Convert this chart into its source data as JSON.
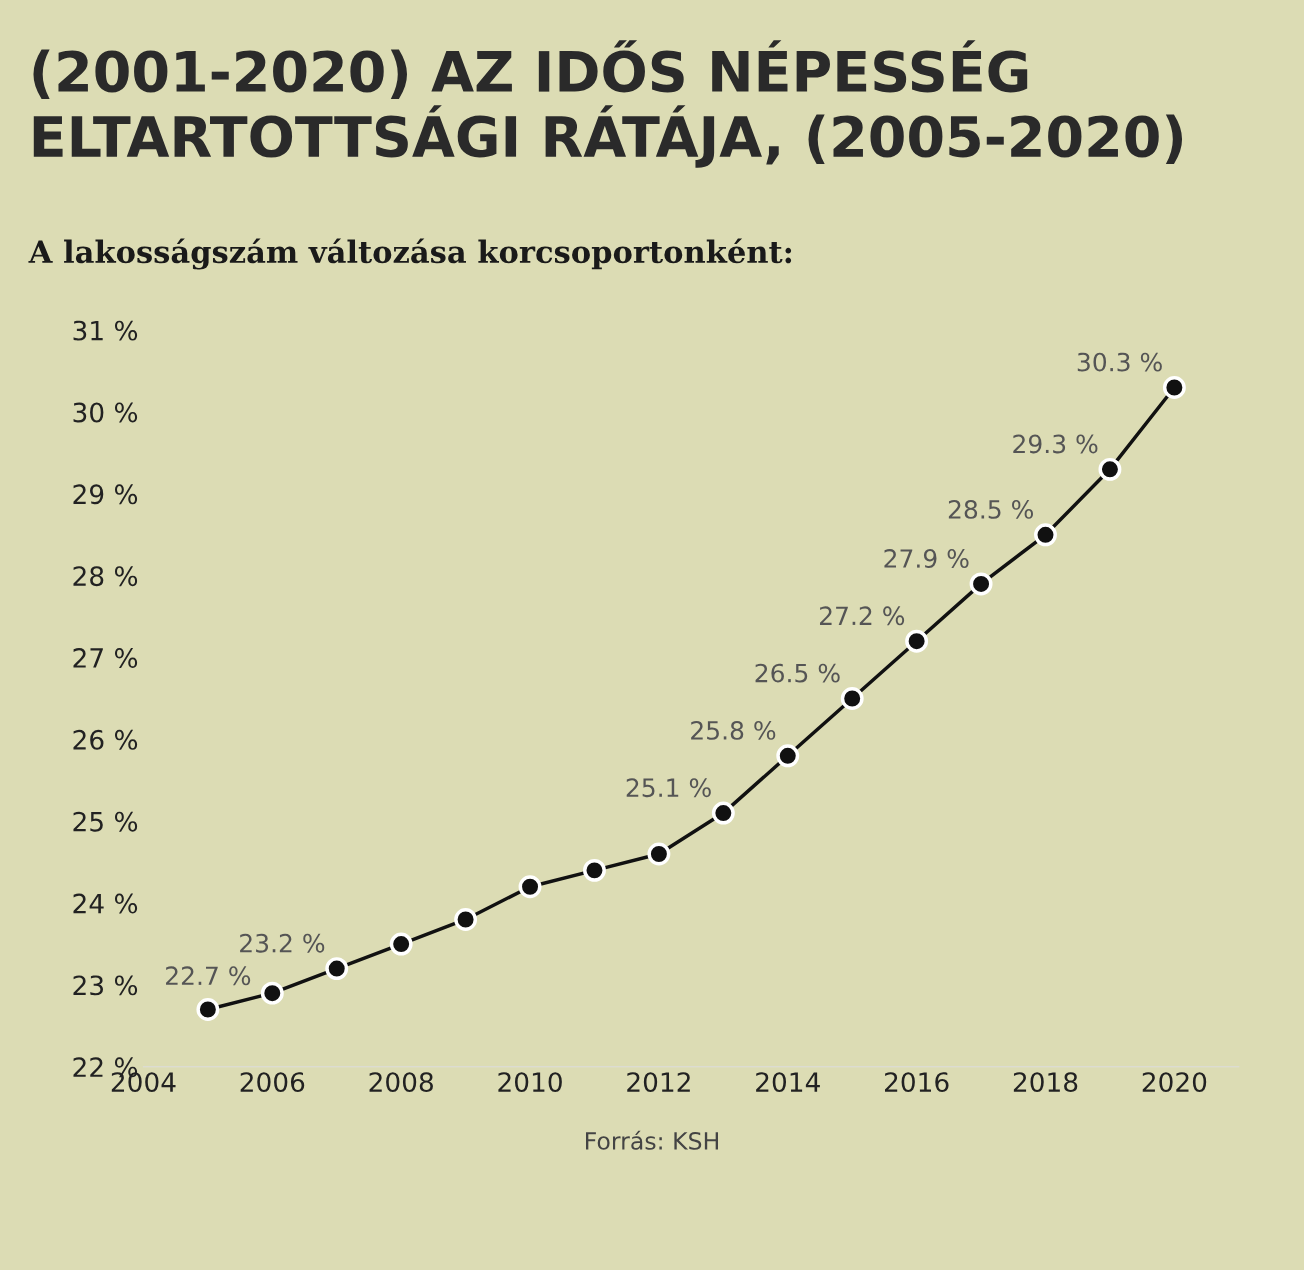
{
  "chart_data": {
    "type": "line",
    "title": "(2001-2020) AZ IDŐS NÉPESSÉG\nELTARTOTTSÁGI RÁTÁJA, (2005-2020)",
    "subtitle": "A lakosságszám változása korcsoportonként:",
    "x": [
      2005,
      2006,
      2007,
      2008,
      2009,
      2010,
      2011,
      2012,
      2013,
      2014,
      2015,
      2016,
      2017,
      2018,
      2019,
      2020
    ],
    "series": [
      {
        "color": "#111111",
        "values": [
          22.7,
          22.9,
          23.2,
          23.5,
          23.8,
          24.2,
          24.4,
          24.6,
          25.1,
          25.8,
          26.5,
          27.2,
          27.9,
          28.5,
          29.3,
          30.3
        ],
        "value_labels": [
          "22.7 %",
          null,
          "23.2 %",
          null,
          null,
          null,
          null,
          null,
          "25.1 %",
          "25.8 %",
          "26.5 %",
          "27.2 %",
          "27.9 %",
          "28.5 %",
          "29.3 %",
          "30.3 %"
        ]
      }
    ],
    "xlim": [
      2004,
      2021
    ],
    "xticks": [
      2004,
      2006,
      2008,
      2010,
      2012,
      2014,
      2016,
      2018,
      2020
    ],
    "ylim": [
      22,
      31
    ],
    "yticks": [
      {
        "value": 22,
        "label": "22 %"
      },
      {
        "value": 23,
        "label": "23 %"
      },
      {
        "value": 24,
        "label": "24 %"
      },
      {
        "value": 25,
        "label": "25 %"
      },
      {
        "value": 26,
        "label": "26 %"
      },
      {
        "value": 27,
        "label": "27 %"
      },
      {
        "value": 28,
        "label": "28 %"
      },
      {
        "value": 29,
        "label": "29 %"
      },
      {
        "value": 30,
        "label": "30 %"
      },
      {
        "value": 31,
        "label": "31 %"
      }
    ],
    "grid": false,
    "legend": false,
    "marker": "circle",
    "line_style": "solid",
    "annotations": [
      "Forrás: KSH"
    ]
  }
}
